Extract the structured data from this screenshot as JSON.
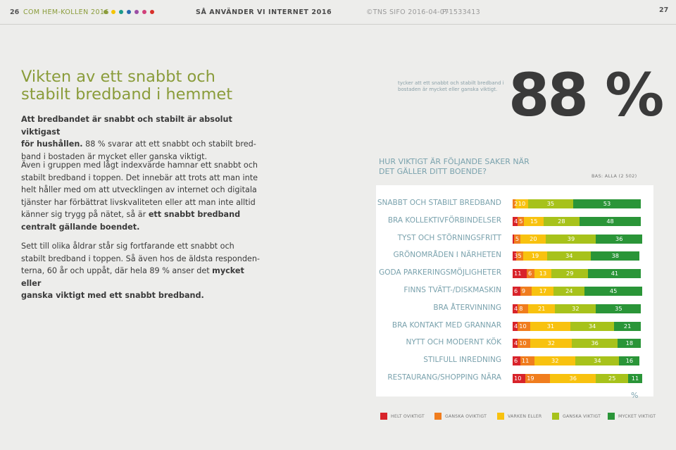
{
  "header": {
    "page_left": "26",
    "left_title": "COM HEM-KOLLEN 2016",
    "middle_title": "SÅ ANVÄNDER VI INTERNET 2016",
    "source": "©TNS SIFO 2016-04-07",
    "project": "P-1533413",
    "page_right": "27",
    "dot_colors": [
      "#8a9c3a",
      "#f5c400",
      "#1a9a8a",
      "#2a6ab0",
      "#9b4ea5",
      "#d1407a",
      "#d8302a"
    ]
  },
  "left": {
    "title_line1": "Vikten av ett snabbt och",
    "title_line2": "stabilt bredband i hemmet",
    "p1": [
      {
        "t": "Att bredbandet är snabbt och stabilt är absolut viktigast",
        "b": true
      },
      {
        "t": "för hushållen.",
        "b": true
      },
      {
        "t": " 88 % svarar att ett snabbt och stabilt bred-",
        "b": false
      },
      {
        "t": "band i bostaden är mycket eller ganska viktigt.",
        "b": false
      }
    ],
    "p2": [
      {
        "t": "Även i gruppen med lågt indexvärde hamnar ett snabbt och",
        "b": false
      },
      {
        "t": "stabilt bredband i toppen.",
        "b": false
      },
      {
        "t": " Det innebär att trots att man inte",
        "b": false
      },
      {
        "t": "helt håller med om att utvecklingen av internet och digitala",
        "b": false
      },
      {
        "t": "tjänster har förbättrat livskvaliteten eller att man inte alltid",
        "b": false
      },
      {
        "t": "känner sig trygg på nätet, så är ",
        "b": false
      },
      {
        "t": "ett snabbt bredband",
        "b": true
      },
      {
        "t": "centralt gällande boendet.",
        "b": true
      }
    ],
    "p3": [
      {
        "t": "Sett till olika åldrar står sig fortfarande ett snabbt och",
        "b": false
      },
      {
        "t": "stabilt bredband i toppen. Så även hos de äldsta responden-",
        "b": false
      },
      {
        "t": "terna, 60 år och uppåt, där hela 89 % anser det ",
        "b": false
      },
      {
        "t": "mycket eller",
        "b": true
      },
      {
        "t": "ganska viktigt med ett snabbt bredband.",
        "b": true
      }
    ]
  },
  "highlight": {
    "value": "88 %",
    "note": "tycker att ett snabbt och stabilt bredband i bostaden är mycket eller ganska viktigt."
  },
  "chart_data": {
    "type": "bar",
    "stacked": true,
    "horizontal": true,
    "title": "HUR VIKTIGT ÄR FÖLJANDE SAKER NÄR DET GÄLLER DITT BOENDE?",
    "base_note": "BAS: ALLA (2 502)",
    "unit": "%",
    "categories": [
      "SNABBT OCH STABILT BREDBAND",
      "BRA KOLLEKTIVFÖRBINDELSER",
      "TYST OCH STÖRNINGSFRITT",
      "GRÖNOMRÅDEN I NÄRHETEN",
      "GODA PARKERINGSMÖJLIGHETER",
      "FINNS TVÄTT-/DISKMASKIN",
      "BRA ÅTERVINNING",
      "BRA KONTAKT MED GRANNAR",
      "NYTT OCH MODERNT KÖK",
      "STILFULL INREDNING",
      "RESTAURANG/SHOPPING NÄRA"
    ],
    "series": [
      {
        "name": "HELT OVIKTIGT",
        "color": "#d8232a",
        "values": [
          null,
          4,
          1,
          3,
          11,
          6,
          4,
          4,
          4,
          6,
          10
        ]
      },
      {
        "name": "GANSKA OVIKTIGT",
        "color": "#f07d1e",
        "values": [
          2,
          5,
          5,
          5,
          6,
          9,
          8,
          10,
          10,
          11,
          19
        ]
      },
      {
        "name": "VARKEN ELLER",
        "color": "#f8c20f",
        "values": [
          10,
          15,
          20,
          19,
          13,
          17,
          21,
          31,
          32,
          32,
          36
        ]
      },
      {
        "name": "GANSKA VIKTIGT",
        "color": "#a7c21b",
        "values": [
          35,
          28,
          39,
          34,
          29,
          24,
          32,
          34,
          36,
          34,
          25
        ]
      },
      {
        "name": "MYCKET VIKTIGT",
        "color": "#2a9538",
        "values": [
          53,
          48,
          36,
          38,
          41,
          45,
          35,
          21,
          18,
          16,
          11
        ]
      }
    ],
    "labels": [
      [
        "",
        "2",
        "10",
        "35",
        "53"
      ],
      [
        "4",
        "5",
        "15",
        "28",
        "48"
      ],
      [
        "",
        "5",
        "20",
        "39",
        "36"
      ],
      [
        "3",
        "5",
        "19",
        "34",
        "38"
      ],
      [
        "11",
        "6",
        "13",
        "29",
        "41"
      ],
      [
        "6",
        "9",
        "17",
        "24",
        "45"
      ],
      [
        "4",
        "8",
        "21",
        "32",
        "35"
      ],
      [
        "4",
        "10",
        "31",
        "34",
        "21"
      ],
      [
        "4",
        "10",
        "32",
        "36",
        "18"
      ],
      [
        "6",
        "11",
        "32",
        "34",
        "16"
      ],
      [
        "10",
        "19",
        "36",
        "25",
        "11"
      ]
    ]
  }
}
